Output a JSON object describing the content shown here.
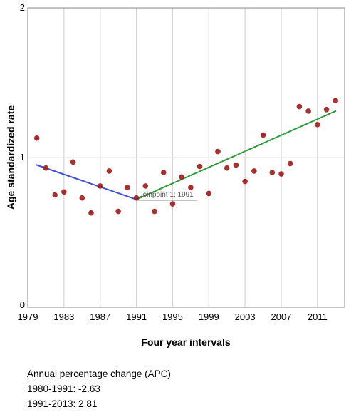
{
  "chart_data": {
    "type": "scatter",
    "xlabel": "Four year intervals",
    "ylabel": "Age standardized rate",
    "xlim": [
      1979,
      2014
    ],
    "ylim": [
      0,
      2
    ],
    "x_ticks": [
      1979,
      1983,
      1987,
      1991,
      1995,
      1999,
      2003,
      2007,
      2011
    ],
    "y_ticks": [
      0,
      1,
      2
    ],
    "grid": true,
    "points": [
      {
        "x": 1980,
        "y": 1.13
      },
      {
        "x": 1981,
        "y": 0.93
      },
      {
        "x": 1982,
        "y": 0.75
      },
      {
        "x": 1983,
        "y": 0.77
      },
      {
        "x": 1984,
        "y": 0.97
      },
      {
        "x": 1985,
        "y": 0.73
      },
      {
        "x": 1986,
        "y": 0.63
      },
      {
        "x": 1987,
        "y": 0.81
      },
      {
        "x": 1988,
        "y": 0.91
      },
      {
        "x": 1989,
        "y": 0.64
      },
      {
        "x": 1990,
        "y": 0.8
      },
      {
        "x": 1991,
        "y": 0.73
      },
      {
        "x": 1992,
        "y": 0.81
      },
      {
        "x": 1993,
        "y": 0.64
      },
      {
        "x": 1994,
        "y": 0.9
      },
      {
        "x": 1995,
        "y": 0.69
      },
      {
        "x": 1996,
        "y": 0.87
      },
      {
        "x": 1997,
        "y": 0.8
      },
      {
        "x": 1998,
        "y": 0.94
      },
      {
        "x": 1999,
        "y": 0.76
      },
      {
        "x": 2000,
        "y": 1.04
      },
      {
        "x": 2001,
        "y": 0.93
      },
      {
        "x": 2002,
        "y": 0.95
      },
      {
        "x": 2003,
        "y": 0.84
      },
      {
        "x": 2004,
        "y": 0.91
      },
      {
        "x": 2005,
        "y": 1.15
      },
      {
        "x": 2006,
        "y": 0.9
      },
      {
        "x": 2007,
        "y": 0.89
      },
      {
        "x": 2008,
        "y": 0.96
      },
      {
        "x": 2009,
        "y": 1.34
      },
      {
        "x": 2010,
        "y": 1.31
      },
      {
        "x": 2011,
        "y": 1.22
      },
      {
        "x": 2012,
        "y": 1.32
      },
      {
        "x": 2013,
        "y": 1.38
      }
    ],
    "point_color": "#9b1b1b",
    "segments": [
      {
        "x": [
          1980,
          1991
        ],
        "y": [
          0.95,
          0.72
        ],
        "color": "#3f4fd6",
        "style": "solid"
      },
      {
        "x": [
          1991,
          2013
        ],
        "y": [
          0.72,
          1.31
        ],
        "color": "#2e9a3a",
        "style": "dashed"
      }
    ],
    "joinpoint": {
      "label": "Joinpoint 1:  1991",
      "x": 1991,
      "y": 0.72
    }
  },
  "apc": {
    "title": "Annual percentage change (APC)",
    "lines": [
      "1980-1991: -2.63",
      "1991-2013: 2.81"
    ]
  }
}
